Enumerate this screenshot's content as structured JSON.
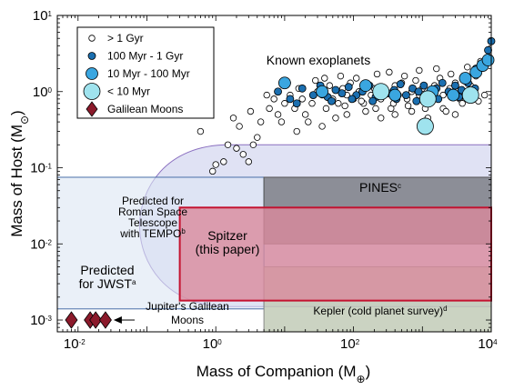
{
  "chart_data": {
    "type": "scatter",
    "xlabel": "Mass of Companion (M",
    "xlabel_sub": "⊕",
    "xlabel_close": ")",
    "ylabel": "Mass of Host (M",
    "ylabel_sub": "⊙",
    "ylabel_close": ")",
    "xscale": "log",
    "yscale": "log",
    "xlim": [
      0.005,
      10000
    ],
    "ylim": [
      0.0007,
      10
    ],
    "x_ticks": [
      {
        "value": 0.01,
        "base": "10",
        "exp": "-2"
      },
      {
        "value": 1,
        "base": "10",
        "exp": "0"
      },
      {
        "value": 100,
        "base": "10",
        "exp": "2"
      },
      {
        "value": 10000,
        "base": "10",
        "exp": "4"
      }
    ],
    "y_ticks": [
      {
        "value": 0.001,
        "base": "10",
        "exp": "-3"
      },
      {
        "value": 0.01,
        "base": "10",
        "exp": "-2"
      },
      {
        "value": 0.1,
        "base": "10",
        "exp": "-1"
      },
      {
        "value": 1,
        "base": "10",
        "exp": "0"
      },
      {
        "value": 10,
        "base": "10",
        "exp": "1"
      }
    ],
    "legend": {
      "placement": "top-left",
      "entries": [
        {
          "label": "> 1 Gyr",
          "marker": "open-circle-small"
        },
        {
          "label": "100 Myr - 1 Gyr",
          "marker": "dark-blue-circle-small"
        },
        {
          "label": "10 Myr - 100 Myr",
          "marker": "blue-circle-medium"
        },
        {
          "label": "< 10 Myr",
          "marker": "cyan-circle-large"
        },
        {
          "label": "Galilean Moons",
          "marker": "red-diamond"
        }
      ]
    },
    "regions": [
      {
        "name": "roman",
        "label_lines": [
          "Predicted for",
          "Roman Space",
          "Telescope",
          "with TEMPO"
        ],
        "label_sup": "b",
        "x_range": [
          0.1,
          10000
        ],
        "y_range": [
          0.0015,
          0.2
        ],
        "color": "#d6d8f0",
        "edge": "#8a6fc0"
      },
      {
        "name": "jwst",
        "label_lines": [
          "Predicted",
          "for JWST"
        ],
        "label_sup": "a",
        "x_range": [
          0.005,
          5
        ],
        "y_range": [
          0.0014,
          0.075
        ],
        "color": "#dce6f3",
        "edge": "#4a6fa8"
      },
      {
        "name": "pines",
        "label_lines": [
          "PINES"
        ],
        "label_sup": "c",
        "x_range": [
          5,
          10000
        ],
        "y_range": [
          0.01,
          0.075
        ],
        "color": "#7d7f86",
        "edge": "#555555"
      },
      {
        "name": "kepler",
        "label_lines": [
          "Kepler (cold planet survey)"
        ],
        "label_sup": "d",
        "x_range": [
          5,
          10000
        ],
        "y_range": [
          0.0007,
          0.005
        ],
        "color": "#c2cbb7",
        "edge": "#888888"
      },
      {
        "name": "spitzer",
        "label_lines": [
          "Spitzer",
          "(this paper)"
        ],
        "label_sup": "",
        "x_range": [
          0.3,
          10000
        ],
        "y_range": [
          0.0018,
          0.03
        ],
        "color": "#d98a9c",
        "edge": "#c41230"
      }
    ],
    "annotations": {
      "known_exoplanets": "Known exoplanets",
      "galilean_label_lines": [
        "Jupiter's Galilean",
        "Moons"
      ]
    },
    "series": [
      {
        "name": "Galilean Moons",
        "marker": "red-diamond",
        "points": [
          [
            0.008,
            0.001
          ],
          [
            0.015,
            0.001
          ],
          [
            0.018,
            0.001
          ],
          [
            0.025,
            0.001
          ]
        ]
      },
      {
        "name": "> 1 Gyr",
        "marker": "open-circle-small",
        "points": [
          [
            0.6,
            0.3
          ],
          [
            0.9,
            0.09
          ],
          [
            1.0,
            0.11
          ],
          [
            1.3,
            0.12
          ],
          [
            1.5,
            0.2
          ],
          [
            2.0,
            0.18
          ],
          [
            2.5,
            0.15
          ],
          [
            3.0,
            0.12
          ],
          [
            3.5,
            0.2
          ],
          [
            4.0,
            0.25
          ],
          [
            2.2,
            0.35
          ],
          [
            1.8,
            0.45
          ],
          [
            3.2,
            0.55
          ],
          [
            4.5,
            0.4
          ],
          [
            6,
            0.6
          ],
          [
            7,
            0.8
          ],
          [
            8,
            0.5
          ],
          [
            10,
            0.7
          ],
          [
            12,
            0.9
          ],
          [
            14,
            0.6
          ],
          [
            16,
            1.1
          ],
          [
            18,
            0.8
          ],
          [
            20,
            0.5
          ],
          [
            25,
            0.7
          ],
          [
            30,
            1.0
          ],
          [
            35,
            0.9
          ],
          [
            40,
            0.6
          ],
          [
            45,
            1.2
          ],
          [
            50,
            0.8
          ],
          [
            60,
            0.7
          ],
          [
            70,
            1.1
          ],
          [
            80,
            0.9
          ],
          [
            90,
            1.3
          ],
          [
            100,
            0.8
          ],
          [
            120,
            1.0
          ],
          [
            140,
            0.7
          ],
          [
            160,
            1.2
          ],
          [
            180,
            0.9
          ],
          [
            200,
            1.1
          ],
          [
            250,
            0.8
          ],
          [
            300,
            1.0
          ],
          [
            350,
            0.6
          ],
          [
            400,
            1.2
          ],
          [
            450,
            0.9
          ],
          [
            500,
            1.3
          ],
          [
            600,
            0.8
          ],
          [
            700,
            1.0
          ],
          [
            800,
            1.4
          ],
          [
            900,
            0.9
          ],
          [
            1000,
            1.1
          ],
          [
            1200,
            0.7
          ],
          [
            1500,
            1.2
          ],
          [
            1800,
            1.5
          ],
          [
            2000,
            0.9
          ],
          [
            2500,
            1.1
          ],
          [
            3000,
            1.3
          ],
          [
            3500,
            0.8
          ],
          [
            4000,
            1.0
          ],
          [
            5000,
            1.2
          ],
          [
            6000,
            1.6
          ],
          [
            8000,
            0.9
          ],
          [
            15,
            0.3
          ],
          [
            22,
            0.4
          ],
          [
            35,
            0.35
          ],
          [
            55,
            0.45
          ],
          [
            80,
            0.5
          ],
          [
            150,
            0.55
          ],
          [
            250,
            0.45
          ],
          [
            400,
            0.5
          ],
          [
            700,
            0.55
          ],
          [
            1200,
            0.45
          ],
          [
            2000,
            0.6
          ],
          [
            3000,
            0.5
          ],
          [
            9,
            0.4
          ],
          [
            28,
            1.4
          ],
          [
            65,
            1.6
          ],
          [
            110,
            1.5
          ],
          [
            220,
            1.7
          ],
          [
            330,
            1.8
          ],
          [
            550,
            1.6
          ],
          [
            900,
            1.9
          ],
          [
            1600,
            2.0
          ],
          [
            2600,
            1.7
          ],
          [
            4500,
            2.1
          ],
          [
            7000,
            2.5
          ],
          [
            5.5,
            0.9
          ],
          [
            11,
            1.3
          ],
          [
            38,
            1.5
          ],
          [
            75,
            0.65
          ],
          [
            130,
            0.75
          ],
          [
            210,
            0.6
          ],
          [
            380,
            0.7
          ],
          [
            620,
            0.65
          ],
          [
            1100,
            0.6
          ],
          [
            2200,
            0.55
          ],
          [
            3800,
            0.7
          ],
          [
            6500,
            0.75
          ]
        ]
      },
      {
        "name": "100 Myr - 1 Gyr",
        "marker": "dark-blue-circle-small",
        "points": [
          [
            8,
            1.0
          ],
          [
            12,
            0.8
          ],
          [
            18,
            1.1
          ],
          [
            26,
            0.9
          ],
          [
            33,
            1.2
          ],
          [
            42,
            0.85
          ],
          [
            55,
            1.05
          ],
          [
            68,
            0.95
          ],
          [
            85,
            1.15
          ],
          [
            110,
            0.9
          ],
          [
            135,
            1.0
          ],
          [
            170,
            1.2
          ],
          [
            210,
            0.85
          ],
          [
            260,
            1.1
          ],
          [
            320,
            0.95
          ],
          [
            390,
            1.05
          ],
          [
            480,
            1.25
          ],
          [
            580,
            0.9
          ],
          [
            720,
            1.1
          ],
          [
            880,
            1.0
          ],
          [
            1050,
            1.2
          ],
          [
            1300,
            0.95
          ],
          [
            1600,
            1.1
          ],
          [
            1950,
            1.3
          ],
          [
            2400,
            1.0
          ],
          [
            3000,
            1.2
          ],
          [
            3700,
            1.05
          ],
          [
            4600,
            1.3
          ],
          [
            5800,
            1.1
          ],
          [
            9000,
            3.5
          ],
          [
            10000,
            4.6
          ],
          [
            6000,
            2.0
          ],
          [
            15,
            0.7
          ],
          [
            48,
            0.75
          ],
          [
            95,
            0.8
          ],
          [
            190,
            0.75
          ],
          [
            420,
            0.8
          ],
          [
            820,
            0.75
          ],
          [
            1700,
            0.8
          ],
          [
            3400,
            0.85
          ]
        ]
      },
      {
        "name": "10 Myr - 100 Myr",
        "marker": "blue-circle-medium",
        "points": [
          [
            10,
            1.3
          ],
          [
            35,
            1.0
          ],
          [
            150,
            1.2
          ],
          [
            400,
            0.9
          ],
          [
            1400,
            1.0
          ],
          [
            2800,
            0.9
          ],
          [
            4200,
            1.5
          ],
          [
            6000,
            1.8
          ],
          [
            7500,
            2.2
          ],
          [
            9000,
            2.6
          ]
        ]
      },
      {
        "name": "< 10 Myr",
        "marker": "cyan-circle-large",
        "points": [
          [
            250,
            1.0
          ],
          [
            1200,
            0.8
          ],
          [
            1100,
            0.35
          ],
          [
            5000,
            0.9
          ]
        ]
      }
    ]
  }
}
